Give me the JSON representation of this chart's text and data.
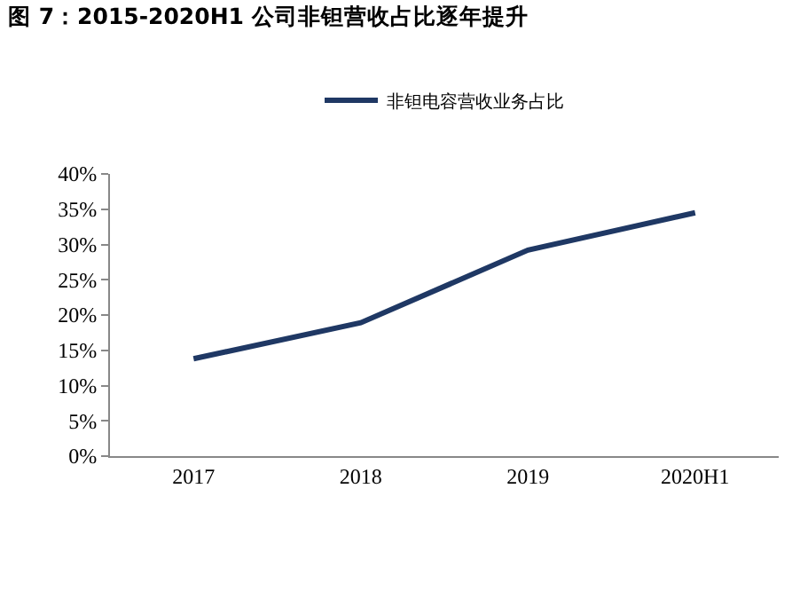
{
  "chart_data": {
    "type": "line",
    "title": "图 7：2015-2020H1 公司非钽营收占比逐年提升",
    "categories": [
      "2017",
      "2018",
      "2019",
      "2020H1"
    ],
    "series": [
      {
        "name": "非钽电容营收业务占比",
        "color": "#1f3864",
        "values": [
          13.8,
          18.9,
          29.2,
          34.5
        ]
      }
    ],
    "ylim": [
      0,
      40
    ],
    "yticks": [
      {
        "value": 0,
        "label": "0%"
      },
      {
        "value": 5,
        "label": "5%"
      },
      {
        "value": 10,
        "label": "10%"
      },
      {
        "value": 15,
        "label": "15%"
      },
      {
        "value": 20,
        "label": "20%"
      },
      {
        "value": 25,
        "label": "25%"
      },
      {
        "value": 30,
        "label": "30%"
      },
      {
        "value": 35,
        "label": "35%"
      },
      {
        "value": 40,
        "label": "40%"
      }
    ],
    "grid": false,
    "legend": "top",
    "marker": "none",
    "line_style": "solid"
  }
}
